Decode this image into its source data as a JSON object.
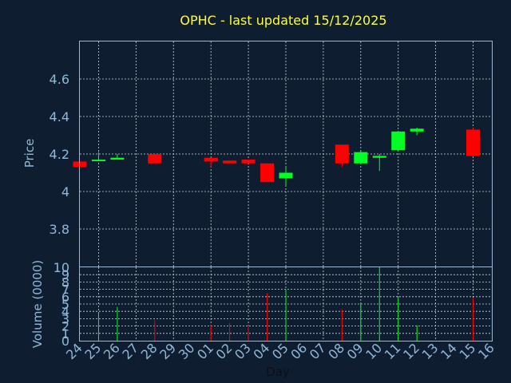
{
  "chart_data": {
    "type": "candlestick",
    "title": "OPHC - last updated 15/12/2025",
    "xlabel": "Day",
    "price_panel": {
      "ylabel": "Price",
      "ylim": [
        3.6,
        4.8
      ],
      "yticks": [
        "3.8",
        "4",
        "4.2",
        "4.4",
        "4.6"
      ]
    },
    "volume_panel": {
      "ylabel": "Volume (0000)",
      "ylim": [
        0,
        10
      ],
      "yticks": [
        "0",
        "1",
        "2",
        "3",
        "4",
        "5",
        "6",
        "7",
        "8",
        "9",
        "10"
      ]
    },
    "x_ticks": [
      "24",
      "25",
      "26",
      "27",
      "28",
      "29",
      "30",
      "01",
      "02",
      "03",
      "04",
      "05",
      "06",
      "07",
      "08",
      "09",
      "10",
      "11",
      "12",
      "13",
      "14",
      "15",
      "16"
    ],
    "candles": [
      {
        "day": "24",
        "open": 4.16,
        "close": 4.13,
        "high": 4.16,
        "low": 4.13,
        "volume": 0
      },
      {
        "day": "25",
        "open": 4.165,
        "close": 4.17,
        "high": 4.21,
        "low": 4.165,
        "volume": 3.8
      },
      {
        "day": "26",
        "open": 4.17,
        "close": 4.18,
        "high": 4.2,
        "low": 4.17,
        "volume": 4.6
      },
      {
        "day": "28",
        "open": 4.2,
        "close": 4.15,
        "high": 4.2,
        "low": 4.15,
        "volume": 2.8
      },
      {
        "day": "01",
        "open": 4.18,
        "close": 4.16,
        "high": 4.18,
        "low": 4.13,
        "volume": 2.2
      },
      {
        "day": "02",
        "open": 4.165,
        "close": 4.15,
        "high": 4.165,
        "low": 4.15,
        "volume": 2.4
      },
      {
        "day": "03",
        "open": 4.17,
        "close": 4.15,
        "high": 4.17,
        "low": 4.15,
        "volume": 2.1
      },
      {
        "day": "04",
        "open": 4.15,
        "close": 4.05,
        "high": 4.15,
        "low": 4.05,
        "volume": 6.5
      },
      {
        "day": "05",
        "open": 4.07,
        "close": 4.1,
        "high": 4.13,
        "low": 4.03,
        "volume": 7
      },
      {
        "day": "08",
        "open": 4.25,
        "close": 4.15,
        "high": 4.25,
        "low": 4.13,
        "volume": 4.3
      },
      {
        "day": "09",
        "open": 4.15,
        "close": 4.21,
        "high": 4.22,
        "low": 4.15,
        "volume": 5.2
      },
      {
        "day": "10",
        "open": 4.18,
        "close": 4.19,
        "high": 4.2,
        "low": 4.11,
        "volume": 10
      },
      {
        "day": "11",
        "open": 4.22,
        "close": 4.32,
        "high": 4.32,
        "low": 4.22,
        "volume": 5.9
      },
      {
        "day": "12",
        "open": 4.32,
        "close": 4.335,
        "high": 4.34,
        "low": 4.3,
        "volume": 2.1
      },
      {
        "day": "15",
        "open": 4.33,
        "close": 4.19,
        "high": 4.34,
        "low": 4.19,
        "volume": 5.8
      }
    ],
    "colors": {
      "up": "#00ff22",
      "down": "#ff0000",
      "title": "#ffff33",
      "text": "#90b8d8",
      "background": "#0e1e30"
    }
  }
}
